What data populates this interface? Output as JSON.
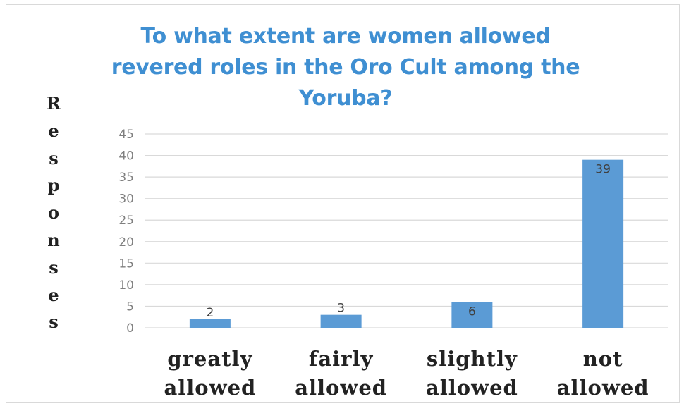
{
  "chart_data": {
    "type": "bar",
    "title": "To what extent are women allowed revered roles in the Oro Cult among the Yoruba?",
    "title_lines": [
      "To what extent are women allowed",
      "revered roles in the Oro Cult among the",
      "Yoruba?"
    ],
    "ylabel": "Responses",
    "xlabel": "",
    "categories": [
      "greatly allowed",
      "fairly allowed",
      "slightly allowed",
      "not allowed"
    ],
    "category_lines": [
      [
        "greatly",
        "allowed"
      ],
      [
        "fairly",
        "allowed"
      ],
      [
        "slightly",
        "allowed"
      ],
      [
        "not",
        "allowed"
      ]
    ],
    "values": [
      2,
      3,
      6,
      39
    ],
    "data_labels": [
      "2",
      "3",
      "6",
      "39"
    ],
    "ylim": [
      0,
      45
    ],
    "yticks": [
      0,
      5,
      10,
      15,
      20,
      25,
      30,
      35,
      40,
      45
    ],
    "grid": true,
    "legend": "none",
    "colors": {
      "bar": "#5b9bd5",
      "title": "#3f8fd2",
      "grid": "#d9d9d9",
      "axis_text": "#7f7f7f"
    }
  }
}
